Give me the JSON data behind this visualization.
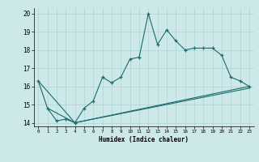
{
  "xlabel": "Humidex (Indice chaleur)",
  "ylabel": "",
  "bg_color": "#cce8e8",
  "line_color": "#1a6b6b",
  "grid_color": "#aad4d4",
  "xlim": [
    -0.5,
    23.5
  ],
  "ylim": [
    13.8,
    20.3
  ],
  "xticks": [
    0,
    1,
    2,
    3,
    4,
    5,
    6,
    7,
    8,
    9,
    10,
    11,
    12,
    13,
    14,
    15,
    16,
    17,
    18,
    19,
    20,
    21,
    22,
    23
  ],
  "yticks": [
    14,
    15,
    16,
    17,
    18,
    19,
    20
  ],
  "line1": {
    "x": [
      0,
      1,
      2,
      3,
      4,
      5,
      6,
      7,
      8,
      9,
      10,
      11,
      12,
      13,
      14,
      15,
      16,
      17,
      18,
      19,
      20,
      21,
      22,
      23
    ],
    "y": [
      16.3,
      14.8,
      14.1,
      14.2,
      14.0,
      14.8,
      15.2,
      16.5,
      16.2,
      16.5,
      17.5,
      17.6,
      20.0,
      18.3,
      19.1,
      18.5,
      18.0,
      18.1,
      18.1,
      18.1,
      17.7,
      16.5,
      16.3,
      16.0
    ]
  },
  "line2": {
    "x": [
      0,
      4,
      23
    ],
    "y": [
      16.3,
      14.0,
      16.0
    ]
  },
  "line3": {
    "x": [
      1,
      4,
      23
    ],
    "y": [
      14.8,
      14.0,
      15.9
    ]
  }
}
